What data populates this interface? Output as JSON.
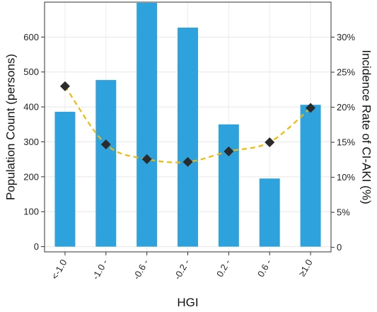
{
  "chart_data": {
    "type": "bar",
    "xlabel": "HGI",
    "ylabel": "Population Count (persons)",
    "y2label": "Incidence Rate of CI-AKI (%)",
    "categories": [
      "<-1.0",
      "-1.0 -",
      "-0.6 -",
      "-0.2 -",
      "0.2 -",
      "0.6 -",
      "≥1.0"
    ],
    "series": [
      {
        "type": "bar",
        "axis": "left",
        "values": [
          386,
          477,
          698,
          627,
          350,
          195,
          406
        ],
        "color": "#2ea2dd"
      },
      {
        "type": "line",
        "axis": "right",
        "style": "dashed",
        "marker": "diamond",
        "values": [
          23.0,
          14.7,
          12.6,
          12.2,
          13.7,
          15.0,
          19.9
        ],
        "color": "#f5b700",
        "marker_color": "#2b2b2b"
      }
    ],
    "ylim": [
      -15,
      700
    ],
    "y_ticks": [
      0,
      100,
      200,
      300,
      400,
      500,
      600
    ],
    "y2lim": [
      -0.64,
      35.0
    ],
    "y2_ticks": [
      0,
      5,
      10,
      15,
      20,
      25,
      30
    ],
    "y2_tick_labels": [
      "0",
      "5%",
      "10%",
      "15%",
      "20%",
      "25%",
      "30%"
    ],
    "grid": true
  }
}
